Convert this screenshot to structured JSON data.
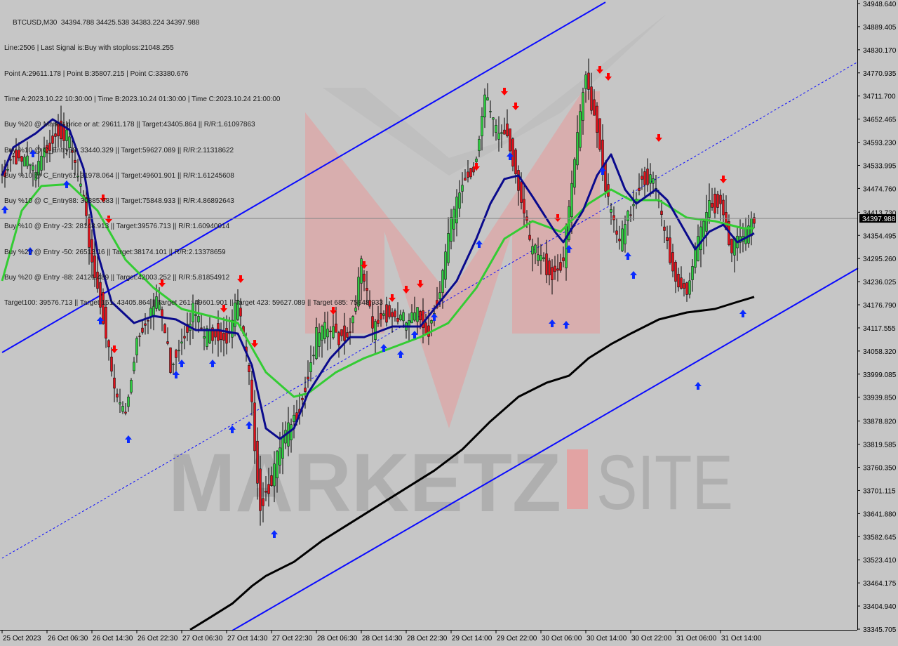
{
  "header": {
    "title": "BTCUSD,M30  34394.788 34425.538 34383.224 34397.988",
    "lines": [
      "Line:2506 | Last Signal is:Buy with stoploss:21048.255",
      "Point A:29611.178 | Point B:35807.215 | Point C:33380.676",
      "Time A:2023.10.22 10:30:00 | Time B:2023.10.24 01:30:00 | Time C:2023.10.24 21:00:00",
      "Buy %20 @ Market price or at: 29611.178 || Target:43405.864 || R/R:1.61097863",
      "Buy %10 @ C_Entry38: 33440.329 || Target:59627.089 || R/R:2.11318622",
      "Buy %10 @ C_Entry61: 31978.064 || Target:49601.901 || R/R:1.61245608",
      "Buy %10 @ C_Entry88: 30385.683 || Target:75848.933 || R/R:4.86892643",
      "Buy %10 @ Entry -23: 28148.913 || Target:39576.713 || R/R:1.60940014",
      "Buy %20 @ Entry -50: 26513.16 || Target:38174.101 || R/R:2.13378659",
      "Buy %20 @ Entry -88: 24121.489 || Target:42003.252 || R/R:5.81854912",
      "Target100: 39576.713 || Target 161: 43405.864 || Target 261: 49601.901 || Target 423: 59627.089 || Target 685: 75848.933"
    ]
  },
  "watermark": {
    "left": "MARKETZ",
    "right": "SITE"
  },
  "colors": {
    "background": "#c6c6c6",
    "ma_fast": "#0a0a8c",
    "ma_mid": "#33cc33",
    "ma_slow": "#000000",
    "channel": "#0a0aff",
    "signal_buy": "#0a2aff",
    "signal_sell": "#ff0000",
    "watermark_red": "#e89a9a",
    "watermark_gray": "#a8a8a8"
  },
  "chart_data": {
    "type": "candlestick",
    "symbol": "BTCUSD",
    "timeframe": "M30",
    "ylim": [
      33345.705,
      34948.64
    ],
    "y_ticks": [
      "34948.640",
      "34889.405",
      "34830.170",
      "34770.935",
      "34711.700",
      "34652.465",
      "34593.230",
      "34533.995",
      "34474.760",
      "34413.730",
      "34354.495",
      "34295.260",
      "34236.025",
      "34176.790",
      "34117.555",
      "34058.320",
      "33999.085",
      "33939.850",
      "33878.820",
      "33819.585",
      "33760.350",
      "33701.115",
      "33641.880",
      "33582.645",
      "33523.410",
      "33464.175",
      "33404.940",
      "33345.705"
    ],
    "x_ticks": [
      "25 Oct 2023",
      "26 Oct 06:30",
      "26 Oct 14:30",
      "26 Oct 22:30",
      "27 Oct 06:30",
      "27 Oct 14:30",
      "27 Oct 22:30",
      "28 Oct 06:30",
      "28 Oct 14:30",
      "28 Oct 22:30",
      "29 Oct 14:00",
      "29 Oct 22:00",
      "30 Oct 06:00",
      "30 Oct 14:00",
      "30 Oct 22:00",
      "31 Oct 06:00",
      "31 Oct 14:00"
    ],
    "x_tick_every_bars": 16,
    "bars_per_close_sample": 4,
    "current_price": "34397.988",
    "closes": [
      34508,
      34562,
      34544,
      34508,
      34580,
      34634,
      34589,
      34472,
      34292,
      34148,
      33950,
      33896,
      34094,
      34157,
      34184,
      34022,
      34094,
      34166,
      34094,
      34112,
      34094,
      34184,
      33986,
      33662,
      33734,
      33824,
      33878,
      33968,
      34094,
      34112,
      34094,
      34112,
      34274,
      34112,
      34157,
      34148,
      34130,
      34148,
      34112,
      34220,
      34382,
      34490,
      34526,
      34706,
      34616,
      34616,
      34490,
      34328,
      34292,
      34256,
      34292,
      34544,
      34760,
      34634,
      34436,
      34328,
      34418,
      34508,
      34490,
      34364,
      34238,
      34220,
      34328,
      34436,
      34436,
      34328,
      34346,
      34397.988
    ],
    "series": [
      {
        "key": "ma_mid",
        "points": [
          [
            0,
            34238
          ],
          [
            7,
            34418
          ],
          [
            14,
            34481
          ],
          [
            24,
            34486
          ],
          [
            34,
            34418
          ],
          [
            44,
            34292
          ],
          [
            54,
            34220
          ],
          [
            64,
            34166
          ],
          [
            74,
            34148
          ],
          [
            84,
            34130
          ],
          [
            94,
            34004
          ],
          [
            104,
            33941
          ],
          [
            109,
            33950
          ],
          [
            119,
            34004
          ],
          [
            129,
            34040
          ],
          [
            139,
            34067
          ],
          [
            149,
            34094
          ],
          [
            159,
            34130
          ],
          [
            169,
            34220
          ],
          [
            179,
            34346
          ],
          [
            189,
            34391
          ],
          [
            199,
            34364
          ],
          [
            209,
            34436
          ],
          [
            217,
            34472
          ],
          [
            224,
            34445
          ],
          [
            234,
            34445
          ],
          [
            244,
            34400
          ],
          [
            254,
            34391
          ],
          [
            264,
            34373
          ],
          [
            268,
            34373
          ]
        ]
      },
      {
        "key": "ma_fast",
        "points": [
          [
            0,
            34508
          ],
          [
            4,
            34580
          ],
          [
            12,
            34616
          ],
          [
            18,
            34652
          ],
          [
            24,
            34625
          ],
          [
            29,
            34526
          ],
          [
            34,
            34310
          ],
          [
            39,
            34184
          ],
          [
            47,
            34130
          ],
          [
            54,
            34148
          ],
          [
            62,
            34139
          ],
          [
            69,
            34112
          ],
          [
            77,
            34112
          ],
          [
            84,
            34103
          ],
          [
            89,
            34022
          ],
          [
            94,
            33860
          ],
          [
            99,
            33833
          ],
          [
            104,
            33860
          ],
          [
            109,
            33950
          ],
          [
            117,
            34040
          ],
          [
            124,
            34094
          ],
          [
            129,
            34094
          ],
          [
            139,
            34121
          ],
          [
            149,
            34121
          ],
          [
            154,
            34166
          ],
          [
            162,
            34238
          ],
          [
            169,
            34346
          ],
          [
            174,
            34436
          ],
          [
            179,
            34499
          ],
          [
            184,
            34508
          ],
          [
            189,
            34454
          ],
          [
            197,
            34364
          ],
          [
            200,
            34337
          ],
          [
            207,
            34418
          ],
          [
            212,
            34508
          ],
          [
            217,
            34562
          ],
          [
            222,
            34472
          ],
          [
            226,
            34436
          ],
          [
            233,
            34472
          ],
          [
            237,
            34445
          ],
          [
            242,
            34382
          ],
          [
            247,
            34319
          ],
          [
            252,
            34364
          ],
          [
            257,
            34382
          ],
          [
            262,
            34337
          ],
          [
            268,
            34360
          ]
        ]
      },
      {
        "key": "ma_slow",
        "points": [
          [
            67,
            33344
          ],
          [
            74,
            33375
          ],
          [
            82,
            33411
          ],
          [
            89,
            33456
          ],
          [
            94,
            33482
          ],
          [
            104,
            33518
          ],
          [
            114,
            33572
          ],
          [
            124,
            33617
          ],
          [
            134,
            33662
          ],
          [
            144,
            33707
          ],
          [
            154,
            33752
          ],
          [
            164,
            33806
          ],
          [
            174,
            33878
          ],
          [
            184,
            33941
          ],
          [
            194,
            33977
          ],
          [
            202,
            33995
          ],
          [
            209,
            34040
          ],
          [
            217,
            34076
          ],
          [
            224,
            34103
          ],
          [
            234,
            34139
          ],
          [
            244,
            34157
          ],
          [
            254,
            34166
          ],
          [
            262,
            34184
          ],
          [
            268,
            34197
          ]
        ]
      }
    ],
    "channel": {
      "upper": [
        [
          0,
          34054.5
        ],
        [
          215,
          34952
        ]
      ],
      "lower": [
        [
          82,
          33342
        ],
        [
          305,
          34270.4
        ]
      ],
      "middle_dashed": [
        [
          0,
          33527.4
        ],
        [
          305,
          34799.3
        ]
      ]
    },
    "sell_signals": [
      [
        36,
        34448.5
      ],
      [
        38,
        34394.5
      ],
      [
        57,
        34230.8
      ],
      [
        85,
        34241.6
      ],
      [
        79,
        34166
      ],
      [
        90,
        34076
      ],
      [
        40,
        34061.7
      ],
      [
        118,
        34160.7
      ],
      [
        129,
        34277.6
      ],
      [
        139,
        34193
      ],
      [
        144,
        34214.6
      ],
      [
        149,
        34229
      ],
      [
        169,
        34529.4
      ],
      [
        179,
        34721.9
      ],
      [
        183,
        34684.2
      ],
      [
        198,
        34398.1
      ],
      [
        213,
        34777.7
      ],
      [
        216,
        34759.7
      ],
      [
        234,
        34603.2
      ],
      [
        257,
        34497
      ]
    ],
    "buy_signals": [
      [
        1,
        34421.5
      ],
      [
        10,
        34315.4
      ],
      [
        11,
        34565.4
      ],
      [
        23,
        34486.3
      ],
      [
        35,
        34137.3
      ],
      [
        45,
        33833.3
      ],
      [
        62,
        33998.7
      ],
      [
        64,
        34027.5
      ],
      [
        75,
        34027.5
      ],
      [
        82,
        33858.4
      ],
      [
        88,
        33869.2
      ],
      [
        97,
        33590.4
      ],
      [
        136,
        34067.1
      ],
      [
        142,
        34050.9
      ],
      [
        147,
        34101.3
      ],
      [
        154,
        34146.3
      ],
      [
        170,
        34333.3
      ],
      [
        181,
        34558.2
      ],
      [
        196,
        34130.1
      ],
      [
        201,
        34126.5
      ],
      [
        202,
        34320.7
      ],
      [
        214,
        34520.4
      ],
      [
        223,
        34302.8
      ],
      [
        225,
        34254.2
      ],
      [
        248,
        33970
      ],
      [
        264,
        34155.2
      ]
    ]
  }
}
